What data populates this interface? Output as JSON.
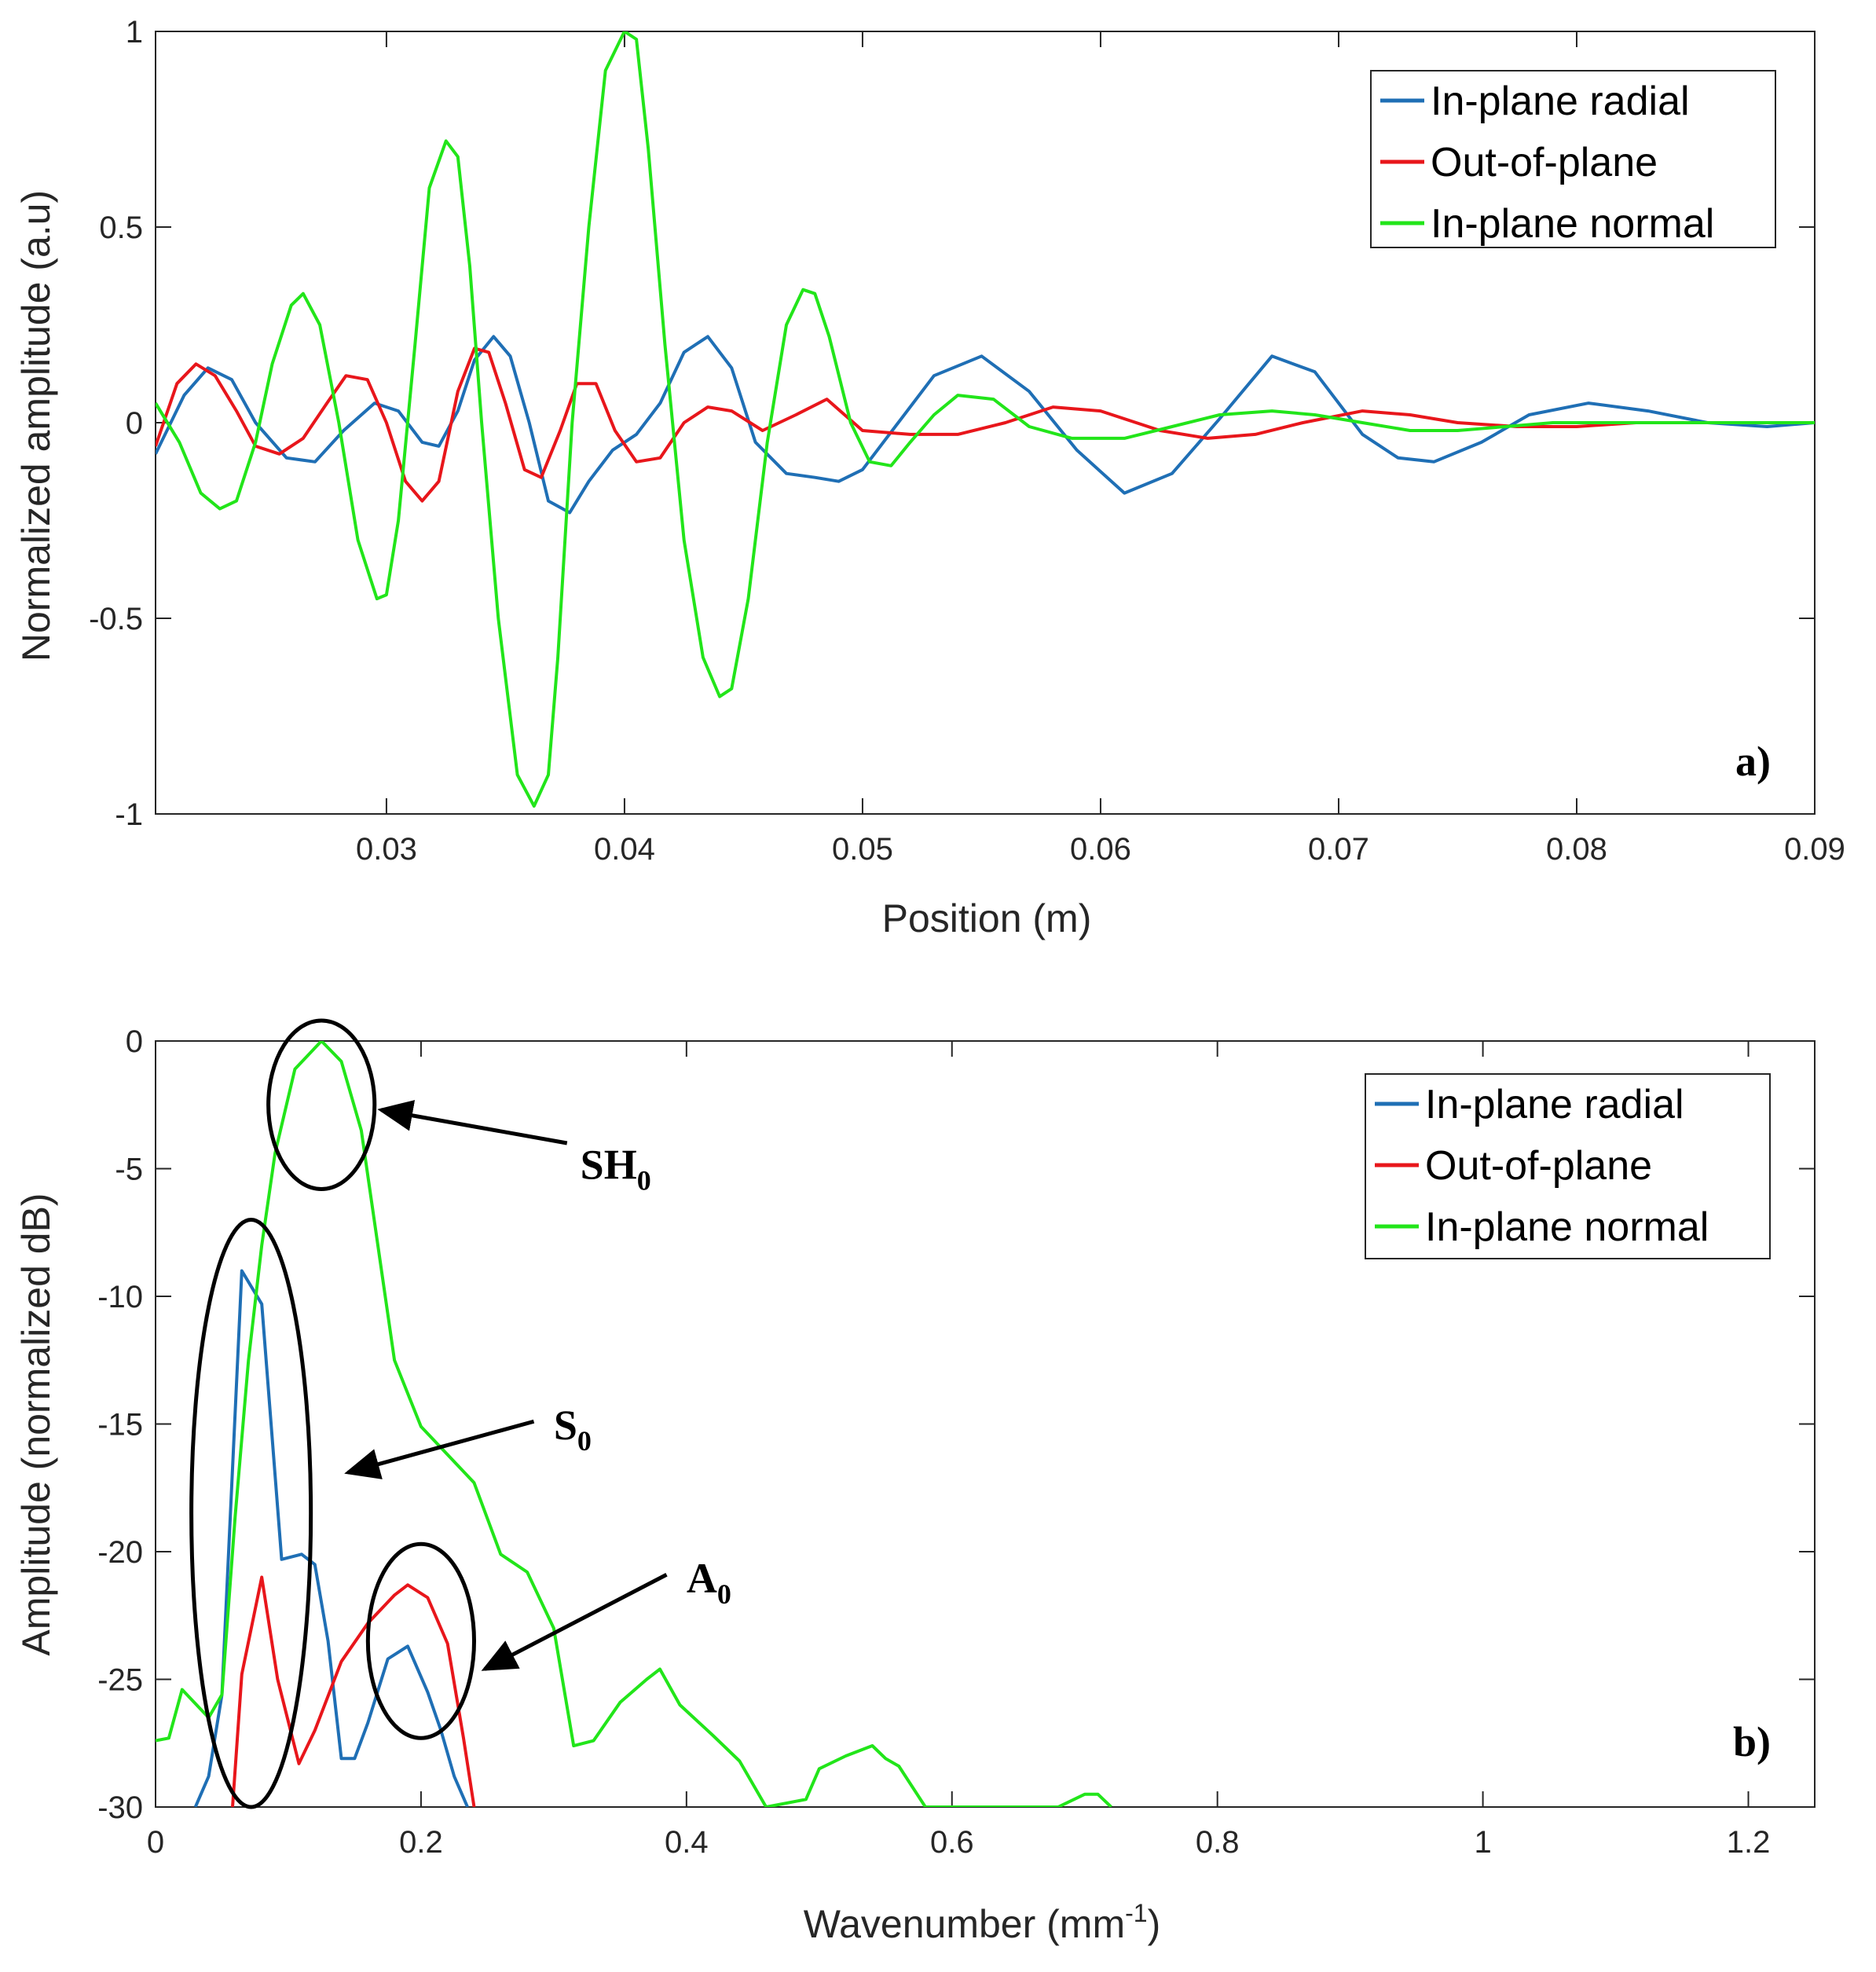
{
  "chart_data": [
    {
      "type": "line",
      "panel_label": "a)",
      "xlabel": "Position (m)",
      "ylabel": "Normalized amplitude (a.u)",
      "xlim": [
        0.0203,
        0.09
      ],
      "ylim": [
        -1,
        1
      ],
      "xticks": [
        0.03,
        0.04,
        0.05,
        0.06,
        0.07,
        0.08,
        0.09
      ],
      "xtick_labels": [
        "0.03",
        "0.04",
        "0.05",
        "0.06",
        "0.07",
        "0.08",
        "0.09"
      ],
      "yticks": [
        -1,
        -0.5,
        0,
        0.5,
        1
      ],
      "ytick_labels": [
        "-1",
        "-0.5",
        "0",
        "0.5",
        "1"
      ],
      "legend_position": "top-right",
      "series": [
        {
          "name": "In-plane radial",
          "color": "#1f6fb5",
          "x": [
            0.0203,
            0.0215,
            0.0225,
            0.0235,
            0.0245,
            0.0258,
            0.027,
            0.0282,
            0.0295,
            0.0305,
            0.0315,
            0.0322,
            0.033,
            0.0337,
            0.0345,
            0.0352,
            0.036,
            0.0368,
            0.0377,
            0.0385,
            0.0395,
            0.0405,
            0.0415,
            0.0425,
            0.0435,
            0.0445,
            0.0455,
            0.0468,
            0.048,
            0.049,
            0.05,
            0.0515,
            0.053,
            0.055,
            0.057,
            0.059,
            0.061,
            0.063,
            0.065,
            0.0672,
            0.069,
            0.071,
            0.0725,
            0.074,
            0.076,
            0.078,
            0.0805,
            0.083,
            0.0855,
            0.088,
            0.09
          ],
          "y": [
            -0.08,
            0.07,
            0.14,
            0.11,
            0.0,
            -0.09,
            -0.1,
            -0.02,
            0.05,
            0.03,
            -0.05,
            -0.06,
            0.03,
            0.16,
            0.22,
            0.17,
            0.0,
            -0.2,
            -0.23,
            -0.15,
            -0.07,
            -0.03,
            0.05,
            0.18,
            0.22,
            0.14,
            -0.05,
            -0.13,
            -0.14,
            -0.15,
            -0.12,
            0.0,
            0.12,
            0.17,
            0.08,
            -0.07,
            -0.18,
            -0.13,
            0.01,
            0.17,
            0.13,
            -0.03,
            -0.09,
            -0.1,
            -0.05,
            0.02,
            0.05,
            0.03,
            0.0,
            -0.01,
            0.0
          ]
        },
        {
          "name": "Out-of-plane",
          "color": "#e8161b",
          "x": [
            0.0203,
            0.0212,
            0.022,
            0.0228,
            0.0237,
            0.0245,
            0.0255,
            0.0265,
            0.0275,
            0.0283,
            0.0292,
            0.03,
            0.0308,
            0.0315,
            0.0322,
            0.033,
            0.0337,
            0.0343,
            0.035,
            0.0358,
            0.0365,
            0.0373,
            0.038,
            0.0388,
            0.0396,
            0.0405,
            0.0415,
            0.0425,
            0.0435,
            0.0445,
            0.0458,
            0.0472,
            0.0485,
            0.05,
            0.052,
            0.054,
            0.056,
            0.058,
            0.06,
            0.0625,
            0.0645,
            0.0665,
            0.0685,
            0.071,
            0.073,
            0.075,
            0.0775,
            0.08,
            0.0825,
            0.085,
            0.09
          ],
          "y": [
            -0.06,
            0.1,
            0.15,
            0.12,
            0.03,
            -0.06,
            -0.08,
            -0.04,
            0.05,
            0.12,
            0.11,
            0.0,
            -0.15,
            -0.2,
            -0.15,
            0.08,
            0.19,
            0.18,
            0.05,
            -0.12,
            -0.14,
            -0.02,
            0.1,
            0.1,
            -0.02,
            -0.1,
            -0.09,
            0.0,
            0.04,
            0.03,
            -0.02,
            0.02,
            0.06,
            -0.02,
            -0.03,
            -0.03,
            0.0,
            0.04,
            0.03,
            -0.02,
            -0.04,
            -0.03,
            0.0,
            0.03,
            0.02,
            0.0,
            -0.01,
            -0.01,
            0.0,
            0.0,
            0.0
          ]
        },
        {
          "name": "In-plane normal",
          "color": "#22e51a",
          "x": [
            0.0203,
            0.0213,
            0.0222,
            0.023,
            0.0237,
            0.0245,
            0.0252,
            0.026,
            0.0265,
            0.0272,
            0.028,
            0.0288,
            0.0296,
            0.03,
            0.0305,
            0.0312,
            0.0318,
            0.0325,
            0.033,
            0.0335,
            0.034,
            0.0347,
            0.0355,
            0.0362,
            0.0368,
            0.0372,
            0.0378,
            0.0385,
            0.0392,
            0.04,
            0.0405,
            0.041,
            0.0417,
            0.0425,
            0.0433,
            0.044,
            0.0445,
            0.0452,
            0.046,
            0.0468,
            0.0475,
            0.048,
            0.0486,
            0.0495,
            0.0503,
            0.0512,
            0.052,
            0.053,
            0.054,
            0.0555,
            0.057,
            0.0588,
            0.061,
            0.063,
            0.065,
            0.0672,
            0.069,
            0.071,
            0.073,
            0.075,
            0.077,
            0.079,
            0.082,
            0.085,
            0.09
          ],
          "y": [
            0.05,
            -0.05,
            -0.18,
            -0.22,
            -0.2,
            -0.05,
            0.15,
            0.3,
            0.33,
            0.25,
            0.0,
            -0.3,
            -0.45,
            -0.44,
            -0.25,
            0.2,
            0.6,
            0.72,
            0.68,
            0.4,
            0.0,
            -0.5,
            -0.9,
            -0.98,
            -0.9,
            -0.6,
            0.0,
            0.5,
            0.9,
            1.0,
            0.98,
            0.7,
            0.2,
            -0.3,
            -0.6,
            -0.7,
            -0.68,
            -0.45,
            -0.05,
            0.25,
            0.34,
            0.33,
            0.22,
            0.0,
            -0.1,
            -0.11,
            -0.05,
            0.02,
            0.07,
            0.06,
            -0.01,
            -0.04,
            -0.04,
            -0.01,
            0.02,
            0.03,
            0.02,
            0.0,
            -0.02,
            -0.02,
            -0.01,
            0.0,
            0.0,
            0.0,
            0.0
          ]
        }
      ]
    },
    {
      "type": "line",
      "panel_label": "b)",
      "xlabel_main": "Wavenumber (mm",
      "xlabel_sup": "-1",
      "xlabel_end": ")",
      "ylabel": "Amplitude (normalized dB)",
      "xlim": [
        0,
        1.25
      ],
      "ylim": [
        -30,
        0
      ],
      "xticks": [
        0,
        0.2,
        0.4,
        0.6,
        0.8,
        1,
        1.2
      ],
      "xtick_labels": [
        "0",
        "0.2",
        "0.4",
        "0.6",
        "0.8",
        "1",
        "1.2"
      ],
      "yticks": [
        -30,
        -25,
        -20,
        -15,
        -10,
        -5,
        0
      ],
      "ytick_labels": [
        "-30",
        "-25",
        "-20",
        "-15",
        "-10",
        "-5",
        "0"
      ],
      "legend_position": "top-right",
      "annotations": [
        {
          "text": "SH",
          "sub": "0",
          "circle_center": [
            0.125,
            -2.5
          ],
          "circle_radii": [
            0.04,
            3.3
          ],
          "arrow_tip": [
            0.17,
            -2.7
          ],
          "arrow_tail": [
            0.31,
            -4.0
          ],
          "text_pos": [
            0.32,
            -5.4
          ]
        },
        {
          "text": "S",
          "sub": "0",
          "circle_center": [
            0.072,
            -18.5
          ],
          "circle_radii": [
            0.045,
            11.5
          ],
          "arrow_tip": [
            0.145,
            -16.9
          ],
          "arrow_tail": [
            0.285,
            -14.9
          ],
          "text_pos": [
            0.3,
            -15.6
          ]
        },
        {
          "text": "A",
          "sub": "0",
          "circle_center": [
            0.2,
            -23.5
          ],
          "circle_radii": [
            0.04,
            3.8
          ],
          "arrow_tip": [
            0.248,
            -24.6
          ],
          "arrow_tail": [
            0.385,
            -20.9
          ],
          "text_pos": [
            0.4,
            -21.6
          ]
        }
      ],
      "series": [
        {
          "name": "In-plane radial",
          "color": "#1f6fb5",
          "x": [
            0.03,
            0.04,
            0.05,
            0.065,
            0.08,
            0.095,
            0.11,
            0.12,
            0.13,
            0.14,
            0.15,
            0.16,
            0.175,
            0.19,
            0.205,
            0.215,
            0.225,
            0.235
          ],
          "y": [
            -30,
            -28.8,
            -25.6,
            -9.0,
            -10.3,
            -20.3,
            -20.1,
            -20.5,
            -23.5,
            -28.1,
            -28.1,
            -26.7,
            -24.2,
            -23.7,
            -25.5,
            -27.0,
            -28.8,
            -30
          ]
        },
        {
          "name": "Out-of-plane",
          "color": "#e8161b",
          "x": [
            0.058,
            0.065,
            0.08,
            0.092,
            0.108,
            0.12,
            0.14,
            0.16,
            0.18,
            0.19,
            0.205,
            0.22,
            0.232,
            0.24
          ],
          "y": [
            -30,
            -24.8,
            -21.0,
            -25.0,
            -28.3,
            -27.0,
            -24.3,
            -22.8,
            -21.7,
            -21.3,
            -21.8,
            -23.6,
            -27.3,
            -30
          ]
        },
        {
          "name": "In-plane normal",
          "color": "#22e51a",
          "x": [
            0,
            0.01,
            0.02,
            0.04,
            0.05,
            0.06,
            0.07,
            0.08,
            0.09,
            0.105,
            0.125,
            0.14,
            0.155,
            0.18,
            0.2,
            0.22,
            0.24,
            0.26,
            0.28,
            0.3,
            0.315,
            0.33,
            0.35,
            0.37,
            0.38,
            0.395,
            0.42,
            0.44,
            0.46,
            0.49,
            0.5,
            0.52,
            0.54,
            0.55,
            0.56,
            0.58,
            0.68,
            0.7,
            0.71,
            0.72
          ],
          "y": [
            -27.4,
            -27.3,
            -25.4,
            -26.5,
            -25.6,
            -18.6,
            -12.5,
            -8.0,
            -4.4,
            -1.1,
            0,
            -0.8,
            -3.5,
            -12.5,
            -15.1,
            -16.2,
            -17.3,
            -20.1,
            -20.8,
            -23.0,
            -27.6,
            -27.4,
            -25.9,
            -25.0,
            -24.6,
            -26.0,
            -27.2,
            -28.2,
            -30,
            -29.7,
            -28.5,
            -28.0,
            -27.6,
            -28.1,
            -28.4,
            -30,
            -30,
            -29.5,
            -29.5,
            -30
          ]
        }
      ]
    }
  ]
}
